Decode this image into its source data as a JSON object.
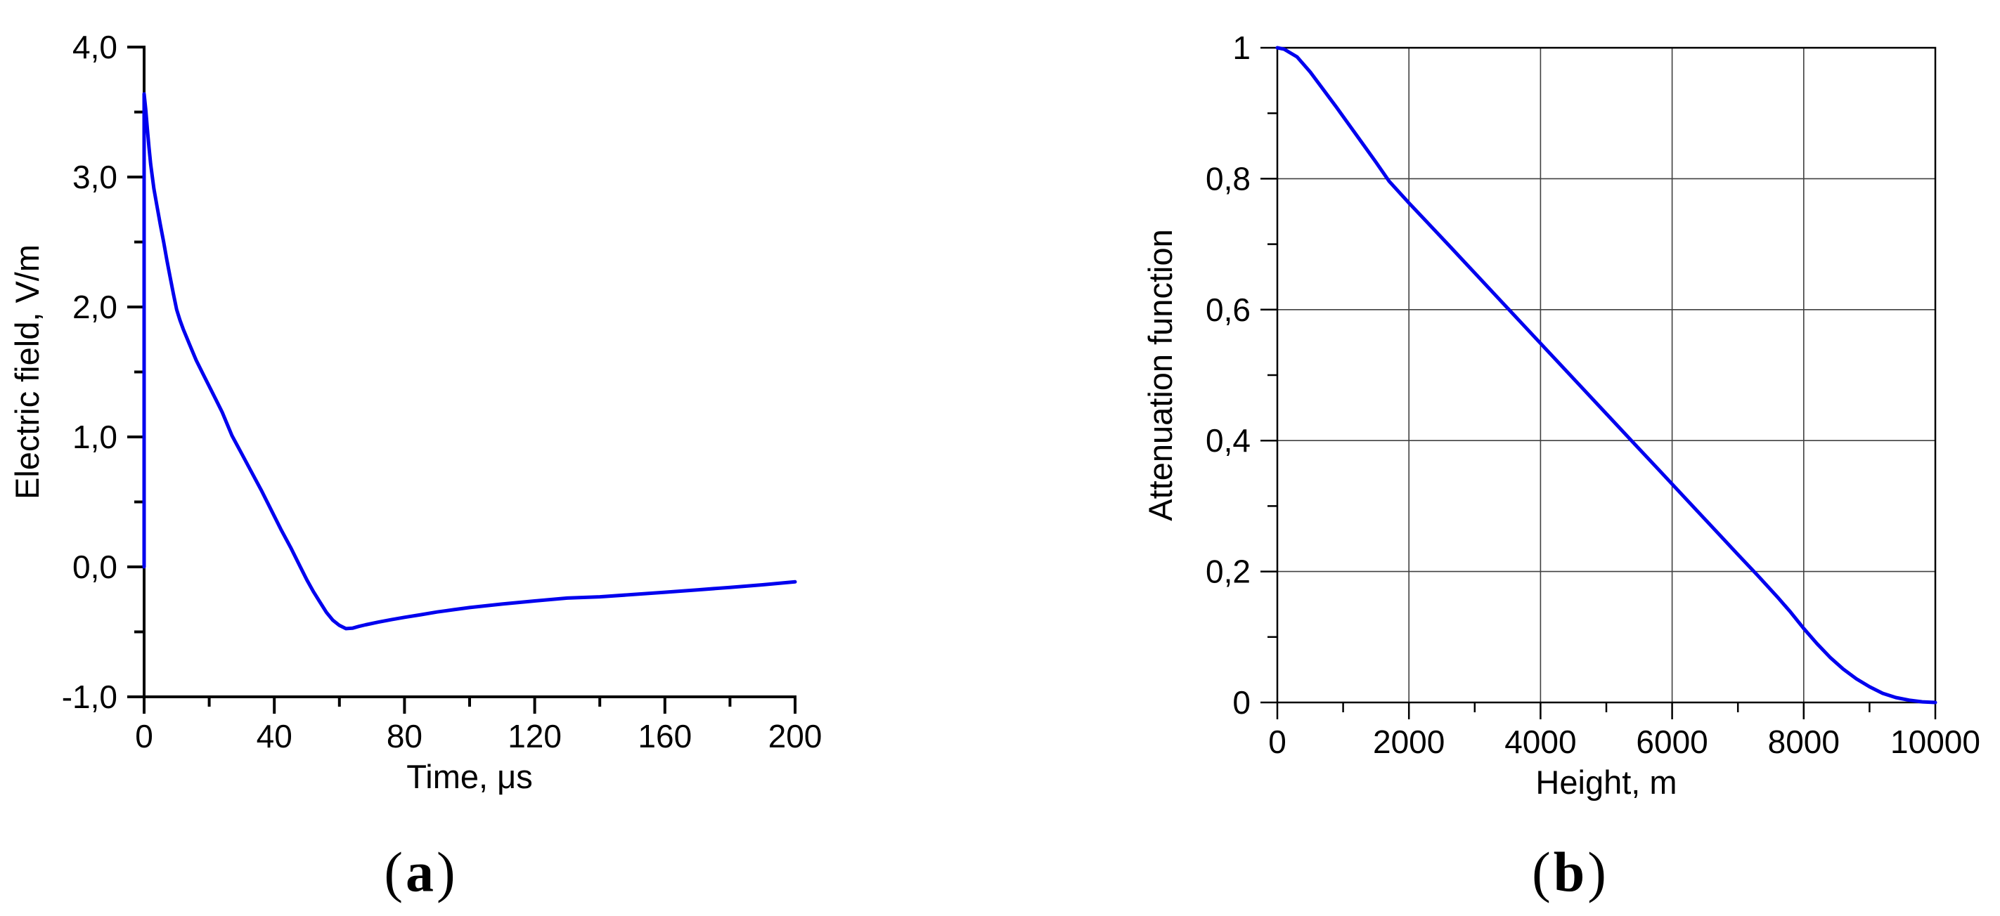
{
  "figure": {
    "caption_a": {
      "open": "(",
      "letter": "a",
      "close": ")"
    },
    "caption_b": {
      "open": "(",
      "letter": "b",
      "close": ")"
    },
    "background_color": "#ffffff",
    "curve_color": "#0000EE",
    "axis_color": "#000000",
    "grid_color": "#404040"
  },
  "chart_data": [
    {
      "id": "panel-a",
      "type": "line",
      "title": "",
      "xlabel": "Time, μs",
      "ylabel": "Electric field, V/m",
      "xlim": [
        0,
        200
      ],
      "ylim": [
        -1.0,
        4.0
      ],
      "frame": "axes-only",
      "grid": false,
      "legend": "none",
      "x_major_ticks": [
        0,
        40,
        80,
        120,
        160,
        200
      ],
      "x_tick_labels": [
        "0",
        "40",
        "80",
        "120",
        "160",
        "200"
      ],
      "x_minor_ticks": [
        20,
        60,
        100,
        140,
        180
      ],
      "y_major_ticks": [
        4,
        3,
        2,
        1,
        0,
        -1
      ],
      "y_tick_labels": [
        "4,0",
        "3,0",
        "2,0",
        "1,0",
        "0,0",
        "-1,0"
      ],
      "y_minor_ticks": [
        3.5,
        2.5,
        1.5,
        0.5,
        -0.5
      ],
      "series": [
        {
          "name": "electric-field-waveform",
          "color": "#0000EE",
          "points": [
            [
              0,
              0.0
            ],
            [
              0,
              3.64
            ],
            [
              0.5,
              3.52
            ],
            [
              1,
              3.37
            ],
            [
              1.5,
              3.23
            ],
            [
              2,
              3.1
            ],
            [
              3,
              2.91
            ],
            [
              4,
              2.77
            ],
            [
              5,
              2.63
            ],
            [
              6,
              2.5
            ],
            [
              7,
              2.36
            ],
            [
              8,
              2.23
            ],
            [
              9,
              2.1
            ],
            [
              10,
              1.98
            ],
            [
              11,
              1.9
            ],
            [
              12,
              1.83
            ],
            [
              14,
              1.71
            ],
            [
              16,
              1.59
            ],
            [
              18,
              1.49
            ],
            [
              20,
              1.39
            ],
            [
              22,
              1.29
            ],
            [
              24,
              1.19
            ],
            [
              27,
              1.01
            ],
            [
              30,
              0.87
            ],
            [
              33,
              0.73
            ],
            [
              36,
              0.59
            ],
            [
              39,
              0.44
            ],
            [
              42,
              0.29
            ],
            [
              45,
              0.15
            ],
            [
              48,
              0.0
            ],
            [
              50,
              -0.1
            ],
            [
              52,
              -0.19
            ],
            [
              54,
              -0.27
            ],
            [
              56,
              -0.35
            ],
            [
              58,
              -0.41
            ],
            [
              60,
              -0.45
            ],
            [
              62,
              -0.475
            ],
            [
              64,
              -0.472
            ],
            [
              66,
              -0.458
            ],
            [
              68,
              -0.446
            ],
            [
              72,
              -0.425
            ],
            [
              76,
              -0.406
            ],
            [
              80,
              -0.388
            ],
            [
              85,
              -0.368
            ],
            [
              90,
              -0.347
            ],
            [
              95,
              -0.33
            ],
            [
              100,
              -0.313
            ],
            [
              110,
              -0.286
            ],
            [
              120,
              -0.262
            ],
            [
              130,
              -0.24
            ],
            [
              140,
              -0.23
            ],
            [
              150,
              -0.213
            ],
            [
              160,
              -0.195
            ],
            [
              170,
              -0.177
            ],
            [
              180,
              -0.158
            ],
            [
              190,
              -0.138
            ],
            [
              200,
              -0.115
            ]
          ]
        }
      ]
    },
    {
      "id": "panel-b",
      "type": "line",
      "title": "",
      "xlabel": "Height, m",
      "ylabel": "Attenuation function",
      "xlim": [
        0,
        10000
      ],
      "ylim": [
        0,
        1
      ],
      "frame": "box",
      "grid": true,
      "legend": "none",
      "x_major_ticks": [
        0,
        2000,
        4000,
        6000,
        8000,
        10000
      ],
      "x_tick_labels": [
        "0",
        "2000",
        "4000",
        "6000",
        "8000",
        "10000"
      ],
      "x_minor_ticks": [
        1000,
        3000,
        5000,
        7000,
        9000
      ],
      "y_major_ticks": [
        1,
        0.8,
        0.6,
        0.4,
        0.2,
        0
      ],
      "y_tick_labels": [
        "1",
        "0,8",
        "0,6",
        "0,4",
        "0,2",
        "0"
      ],
      "y_minor_ticks": [
        0.9,
        0.7,
        0.5,
        0.3,
        0.1
      ],
      "series": [
        {
          "name": "attenuation-function",
          "color": "#0000EE",
          "points": [
            [
              0,
              1.0
            ],
            [
              100,
              0.998
            ],
            [
              300,
              0.986
            ],
            [
              500,
              0.963
            ],
            [
              700,
              0.936
            ],
            [
              900,
              0.909
            ],
            [
              1100,
              0.881
            ],
            [
              1300,
              0.853
            ],
            [
              1500,
              0.825
            ],
            [
              1700,
              0.796
            ],
            [
              2000,
              0.763
            ],
            [
              2300,
              0.731
            ],
            [
              2600,
              0.699
            ],
            [
              3000,
              0.656
            ],
            [
              3400,
              0.613
            ],
            [
              3800,
              0.57
            ],
            [
              4200,
              0.527
            ],
            [
              4600,
              0.484
            ],
            [
              5000,
              0.441
            ],
            [
              5400,
              0.398
            ],
            [
              5800,
              0.355
            ],
            [
              6200,
              0.312
            ],
            [
              6600,
              0.269
            ],
            [
              7000,
              0.226
            ],
            [
              7300,
              0.194
            ],
            [
              7600,
              0.161
            ],
            [
              7800,
              0.138
            ],
            [
              8000,
              0.113
            ],
            [
              8200,
              0.09
            ],
            [
              8400,
              0.069
            ],
            [
              8600,
              0.051
            ],
            [
              8800,
              0.036
            ],
            [
              9000,
              0.024
            ],
            [
              9200,
              0.014
            ],
            [
              9400,
              0.0075
            ],
            [
              9600,
              0.0035
            ],
            [
              9800,
              0.001
            ],
            [
              10000,
              0.0
            ]
          ]
        }
      ]
    }
  ]
}
